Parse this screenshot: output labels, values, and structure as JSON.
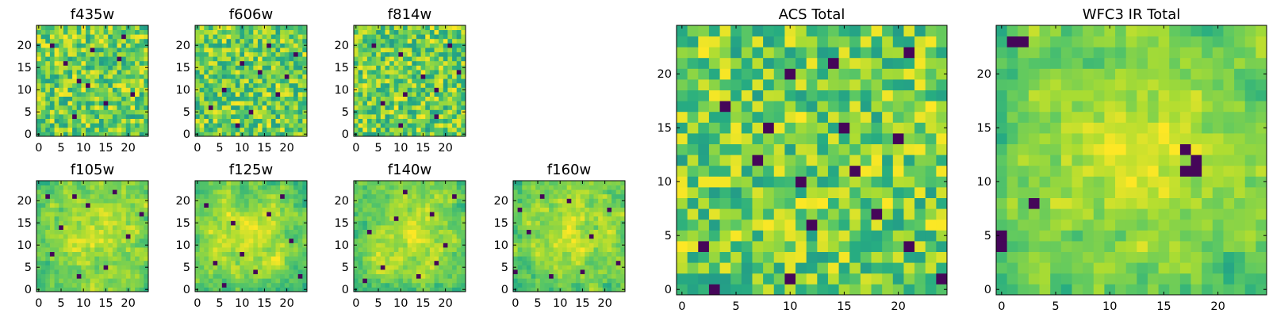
{
  "chart_data": [
    {
      "type": "heatmap",
      "title": "f435w",
      "xlim": [
        0,
        24
      ],
      "ylim": [
        0,
        24
      ],
      "xticks": [
        "0",
        "5",
        "10",
        "15",
        "20"
      ],
      "yticks": [
        "0",
        "5",
        "10",
        "15",
        "20"
      ],
      "colormap": "viridis",
      "lowspots": [
        [
          9,
          12
        ],
        [
          11,
          11
        ],
        [
          6,
          16
        ],
        [
          18,
          17
        ],
        [
          15,
          7
        ],
        [
          3,
          20
        ],
        [
          12,
          19
        ],
        [
          21,
          9
        ],
        [
          8,
          4
        ],
        [
          19,
          22
        ]
      ],
      "seed": 11,
      "style": "noise"
    },
    {
      "type": "heatmap",
      "title": "f606w",
      "xlim": [
        0,
        24
      ],
      "ylim": [
        0,
        24
      ],
      "xticks": [
        "0",
        "5",
        "10",
        "15",
        "20"
      ],
      "yticks": [
        "0",
        "5",
        "10",
        "15",
        "20"
      ],
      "colormap": "viridis",
      "lowspots": [
        [
          16,
          20
        ],
        [
          10,
          16
        ],
        [
          14,
          14
        ],
        [
          6,
          10
        ],
        [
          20,
          13
        ],
        [
          3,
          6
        ],
        [
          12,
          5
        ],
        [
          22,
          18
        ],
        [
          9,
          2
        ],
        [
          18,
          9
        ]
      ],
      "seed": 23,
      "style": "noise"
    },
    {
      "type": "heatmap",
      "title": "f814w",
      "xlim": [
        0,
        24
      ],
      "ylim": [
        0,
        24
      ],
      "xticks": [
        "0",
        "5",
        "10",
        "15",
        "20"
      ],
      "yticks": [
        "0",
        "5",
        "10",
        "15",
        "20"
      ],
      "colormap": "viridis",
      "lowspots": [
        [
          10,
          18
        ],
        [
          15,
          13
        ],
        [
          18,
          10
        ],
        [
          11,
          9
        ],
        [
          23,
          14
        ],
        [
          10,
          2
        ],
        [
          4,
          20
        ],
        [
          18,
          4
        ],
        [
          6,
          7
        ],
        [
          21,
          20
        ]
      ],
      "seed": 37,
      "style": "noise"
    },
    {
      "type": "heatmap",
      "title": "f105w",
      "xlim": [
        0,
        24
      ],
      "ylim": [
        0,
        24
      ],
      "xticks": [
        "0",
        "5",
        "10",
        "15",
        "20"
      ],
      "yticks": [
        "0",
        "5",
        "10",
        "15",
        "20"
      ],
      "colormap": "viridis",
      "lowspots": [
        [
          2,
          21
        ],
        [
          8,
          21
        ],
        [
          11,
          19
        ],
        [
          17,
          22
        ],
        [
          3,
          8
        ],
        [
          15,
          5
        ],
        [
          20,
          12
        ],
        [
          9,
          3
        ],
        [
          23,
          17
        ],
        [
          5,
          14
        ]
      ],
      "seed": 41,
      "style": "smooth"
    },
    {
      "type": "heatmap",
      "title": "f125w",
      "xlim": [
        0,
        24
      ],
      "ylim": [
        0,
        24
      ],
      "xticks": [
        "0",
        "5",
        "10",
        "15",
        "20"
      ],
      "yticks": [
        "0",
        "5",
        "10",
        "15",
        "20"
      ],
      "colormap": "viridis",
      "lowspots": [
        [
          19,
          21
        ],
        [
          4,
          6
        ],
        [
          13,
          4
        ],
        [
          21,
          11
        ],
        [
          8,
          15
        ],
        [
          2,
          19
        ],
        [
          16,
          17
        ],
        [
          10,
          8
        ],
        [
          23,
          3
        ],
        [
          6,
          1
        ]
      ],
      "seed": 53,
      "style": "smooth"
    },
    {
      "type": "heatmap",
      "title": "f140w",
      "xlim": [
        0,
        24
      ],
      "ylim": [
        0,
        24
      ],
      "xticks": [
        "0",
        "5",
        "10",
        "15",
        "20"
      ],
      "yticks": [
        "0",
        "5",
        "10",
        "15",
        "20"
      ],
      "colormap": "viridis",
      "lowspots": [
        [
          17,
          17
        ],
        [
          3,
          13
        ],
        [
          9,
          16
        ],
        [
          20,
          10
        ],
        [
          6,
          5
        ],
        [
          14,
          3
        ],
        [
          22,
          21
        ],
        [
          11,
          22
        ],
        [
          2,
          2
        ],
        [
          18,
          6
        ]
      ],
      "seed": 67,
      "style": "smooth"
    },
    {
      "type": "heatmap",
      "title": "f160w",
      "xlim": [
        0,
        24
      ],
      "ylim": [
        0,
        24
      ],
      "xticks": [
        "0",
        "5",
        "10",
        "15",
        "20"
      ],
      "yticks": [
        "0",
        "5",
        "10",
        "15",
        "20"
      ],
      "colormap": "viridis",
      "lowspots": [
        [
          0,
          4
        ],
        [
          6,
          21
        ],
        [
          17,
          12
        ],
        [
          21,
          18
        ],
        [
          3,
          13
        ],
        [
          12,
          20
        ],
        [
          23,
          6
        ],
        [
          8,
          3
        ],
        [
          15,
          4
        ],
        [
          1,
          18
        ]
      ],
      "seed": 79,
      "style": "smooth"
    },
    {
      "type": "heatmap",
      "title": "ACS Total",
      "xlim": [
        0,
        24
      ],
      "ylim": [
        0,
        24
      ],
      "xticks": [
        "0",
        "5",
        "10",
        "15",
        "20"
      ],
      "yticks": [
        "0",
        "5",
        "10",
        "15",
        "20"
      ],
      "colormap": "viridis",
      "lowspots": [
        [
          10,
          20
        ],
        [
          14,
          21
        ],
        [
          21,
          22
        ],
        [
          4,
          17
        ],
        [
          8,
          15
        ],
        [
          15,
          15
        ],
        [
          20,
          14
        ],
        [
          7,
          12
        ],
        [
          16,
          11
        ],
        [
          12,
          6
        ],
        [
          2,
          4
        ],
        [
          21,
          4
        ],
        [
          10,
          1
        ],
        [
          3,
          0
        ],
        [
          18,
          7
        ],
        [
          11,
          10
        ],
        [
          24,
          1
        ]
      ],
      "seed": 97,
      "style": "noise"
    },
    {
      "type": "heatmap",
      "title": "WFC3 IR Total",
      "xlim": [
        0,
        24
      ],
      "ylim": [
        0,
        24
      ],
      "xticks": [
        "0",
        "5",
        "10",
        "15",
        "20"
      ],
      "yticks": [
        "0",
        "5",
        "10",
        "15",
        "20"
      ],
      "colormap": "viridis",
      "lowspots": [
        [
          1,
          23
        ],
        [
          2,
          23
        ],
        [
          17,
          13
        ],
        [
          18,
          12
        ],
        [
          3,
          8
        ],
        [
          0,
          5
        ],
        [
          0,
          4
        ],
        [
          17,
          11
        ],
        [
          18,
          11
        ],
        [
          2,
          23
        ]
      ],
      "seed": 113,
      "style": "smooth"
    }
  ]
}
